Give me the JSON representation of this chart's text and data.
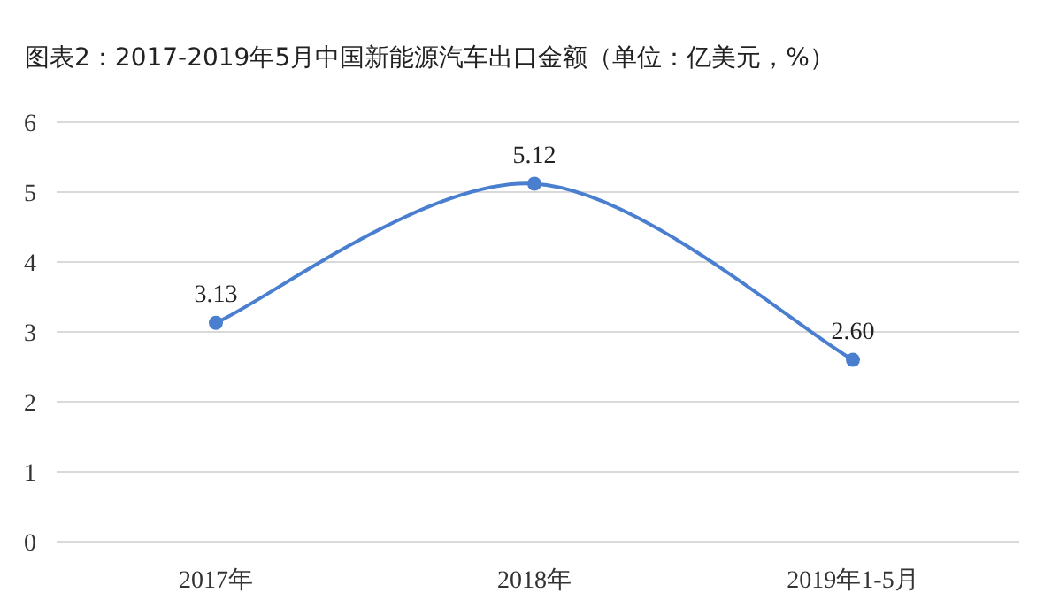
{
  "chart_data": {
    "type": "line",
    "title": "图表2：2017-2019年5月中国新能源汽车出口金额（单位：亿美元，%）",
    "categories": [
      "2017年",
      "2018年",
      "2019年1-5月"
    ],
    "values": [
      3.13,
      5.12,
      2.6
    ],
    "value_labels": [
      "3.13",
      "5.12",
      "2.60"
    ],
    "color": "#4a7fd0",
    "ylim": [
      0,
      6
    ],
    "yticks": [
      0,
      1,
      2,
      3,
      4,
      5,
      6
    ],
    "grid": "y",
    "marker": "circle",
    "line_style": "solid"
  }
}
